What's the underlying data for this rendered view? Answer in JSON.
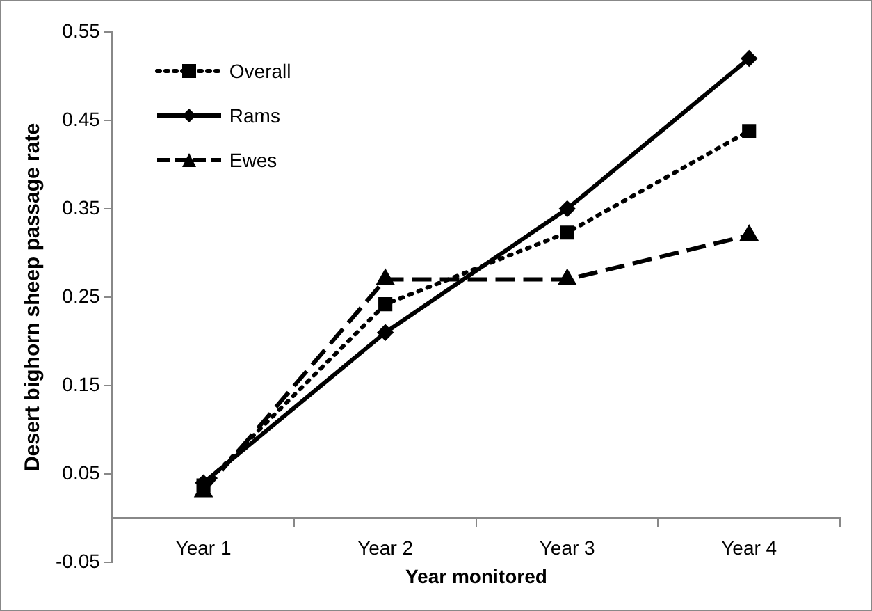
{
  "chart_data": {
    "type": "line",
    "xlabel": "Year monitored",
    "ylabel": "Desert bighorn sheep passage rate",
    "categories": [
      "Year 1",
      "Year 2",
      "Year 3",
      "Year 4"
    ],
    "series": [
      {
        "name": "Overall",
        "color": "#000000",
        "marker": "square",
        "line_style": "dotted",
        "values": [
          0.037,
          0.242,
          0.323,
          0.438
        ]
      },
      {
        "name": "Rams",
        "color": "#000000",
        "marker": "diamond",
        "line_style": "solid",
        "values": [
          0.04,
          0.21,
          0.35,
          0.52
        ]
      },
      {
        "name": "Ewes",
        "color": "#000000",
        "marker": "triangle",
        "line_style": "dashed",
        "values": [
          0.03,
          0.27,
          0.27,
          0.32
        ]
      }
    ],
    "ylim": [
      -0.05,
      0.55
    ],
    "yticks": [
      -0.05,
      0.05,
      0.15,
      0.25,
      0.35,
      0.45,
      0.55
    ],
    "grid": false,
    "legend": "top left"
  }
}
